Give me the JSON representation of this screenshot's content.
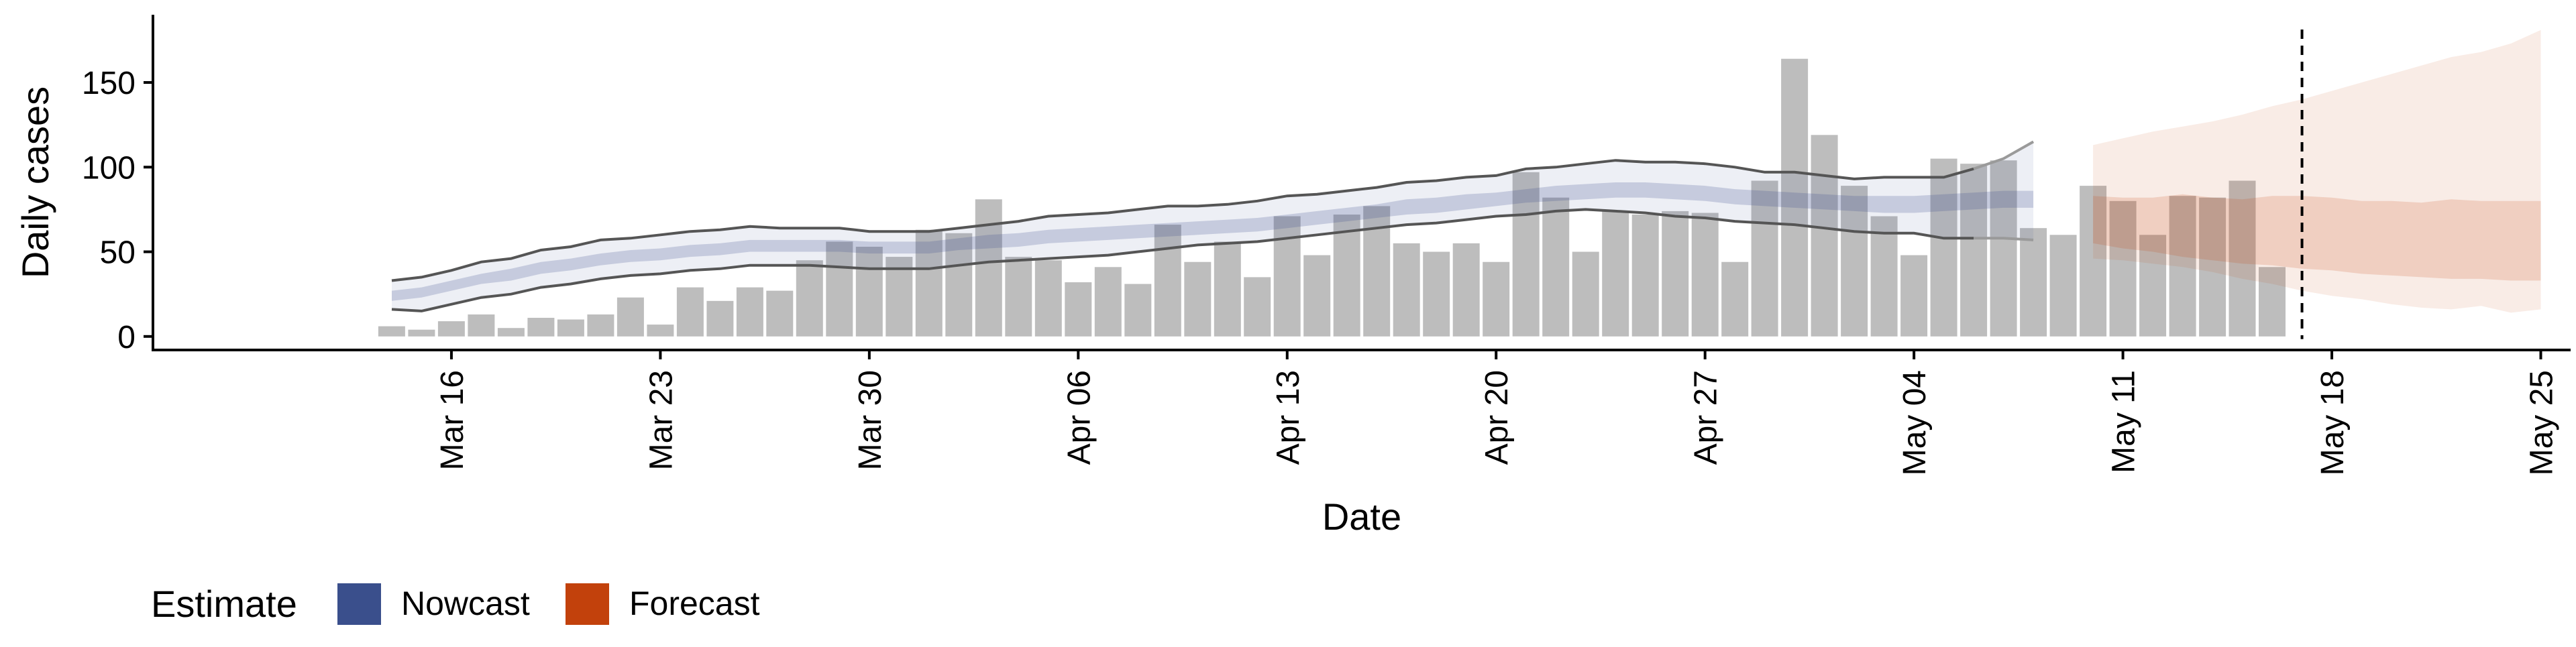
{
  "chart_data": {
    "type": "bar",
    "xlabel": "Date",
    "ylabel": "Daily cases",
    "y_ticks": [
      0,
      50,
      100,
      150
    ],
    "ylim": [
      -8,
      190
    ],
    "x_ticks": [
      "Mar 16",
      "Mar 23",
      "Mar 30",
      "Apr 06",
      "Apr 13",
      "Apr 20",
      "Apr 27",
      "May 04",
      "May 11",
      "May 18",
      "May 25"
    ],
    "x_tick_dates": [
      "2020-03-16",
      "2020-03-23",
      "2020-03-30",
      "2020-04-06",
      "2020-04-13",
      "2020-04-20",
      "2020-04-27",
      "2020-05-04",
      "2020-05-11",
      "2020-05-18",
      "2020-05-25"
    ],
    "xlim": [
      "2020-03-06",
      "2020-05-26"
    ],
    "bars": {
      "start_date": "2020-03-14",
      "color": "#bdbdbd",
      "values": [
        6,
        4,
        9,
        13,
        5,
        11,
        10,
        13,
        23,
        7,
        29,
        21,
        29,
        27,
        45,
        56,
        53,
        47,
        63,
        61,
        81,
        47,
        45,
        32,
        41,
        31,
        66,
        44,
        56,
        35,
        71,
        48,
        72,
        77,
        55,
        50,
        55,
        44,
        97,
        82,
        50,
        74,
        72,
        74,
        73,
        44,
        92,
        164,
        119,
        89,
        71,
        48,
        105,
        102,
        104,
        64,
        60,
        89,
        80,
        60,
        83,
        82,
        92,
        41
      ]
    },
    "nowcast": {
      "start_date": "2020-03-14",
      "color": "#3a4f8c",
      "upper": [
        33,
        35,
        39,
        44,
        46,
        51,
        53,
        57,
        58,
        60,
        62,
        63,
        65,
        64,
        64,
        64,
        62,
        62,
        62,
        64,
        66,
        68,
        71,
        72,
        73,
        75,
        77,
        77,
        78,
        80,
        83,
        84,
        86,
        88,
        91,
        92,
        94,
        95,
        99,
        100,
        102,
        104,
        103,
        103,
        102,
        100,
        97,
        97,
        95,
        93,
        94,
        94,
        94,
        99,
        105,
        115
      ],
      "mid_upper": [
        27,
        29,
        33,
        37,
        40,
        44,
        46,
        49,
        51,
        52,
        54,
        55,
        57,
        57,
        57,
        57,
        56,
        56,
        56,
        58,
        60,
        61,
        63,
        64,
        65,
        66,
        67,
        68,
        69,
        70,
        72,
        74,
        76,
        78,
        81,
        82,
        84,
        85,
        87,
        89,
        90,
        91,
        91,
        90,
        89,
        87,
        86,
        85,
        84,
        83,
        83,
        83,
        84,
        85,
        86,
        86
      ],
      "mid_lower": [
        21,
        23,
        27,
        31,
        33,
        37,
        39,
        42,
        44,
        45,
        47,
        48,
        50,
        50,
        50,
        50,
        49,
        49,
        49,
        51,
        52,
        53,
        55,
        56,
        57,
        58,
        59,
        60,
        61,
        62,
        64,
        66,
        68,
        70,
        72,
        73,
        75,
        77,
        79,
        80,
        81,
        82,
        82,
        81,
        80,
        78,
        77,
        76,
        75,
        74,
        73,
        73,
        74,
        75,
        76,
        76
      ],
      "lower": [
        16,
        15,
        19,
        23,
        25,
        29,
        31,
        34,
        36,
        37,
        39,
        40,
        42,
        42,
        42,
        41,
        40,
        40,
        40,
        42,
        44,
        45,
        46,
        47,
        48,
        50,
        52,
        54,
        55,
        56,
        58,
        60,
        62,
        64,
        66,
        67,
        69,
        71,
        72,
        74,
        75,
        74,
        73,
        71,
        70,
        68,
        67,
        66,
        64,
        62,
        61,
        61,
        58,
        58,
        58,
        57
      ]
    },
    "forecast": {
      "start_date": "2020-05-10",
      "color": "#c2410c",
      "outer_upper": [
        113,
        117,
        121,
        124,
        127,
        131,
        136,
        140,
        145,
        150,
        155,
        160,
        165,
        168,
        173,
        181
      ],
      "outer_lower": [
        46,
        45,
        43,
        41,
        38,
        34,
        31,
        27,
        24,
        22,
        19,
        17,
        16,
        18,
        14,
        16
      ],
      "inner_upper": [
        83,
        82,
        82,
        84,
        82,
        81,
        83,
        83,
        82,
        80,
        80,
        79,
        81,
        80,
        80,
        80
      ],
      "inner_lower": [
        55,
        52,
        50,
        47,
        45,
        43,
        42,
        40,
        39,
        37,
        36,
        35,
        34,
        34,
        33,
        33
      ]
    },
    "vline": {
      "date": "2020-05-17",
      "style": "dashed"
    },
    "legend": {
      "title": "Estimate",
      "position": "bottom",
      "items": [
        {
          "label": "Nowcast",
          "color": "#3a4f8c"
        },
        {
          "label": "Forecast",
          "color": "#c2410c"
        }
      ]
    }
  }
}
